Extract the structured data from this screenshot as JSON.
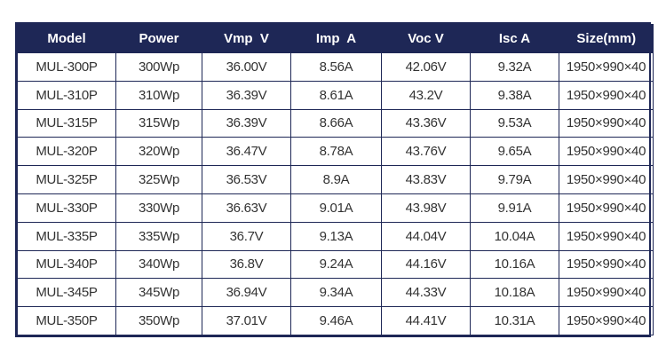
{
  "table": {
    "columns": [
      "Model",
      "Power",
      "Vmp  V",
      "Imp  A",
      "Voc V",
      "Isc A",
      "Size(mm)"
    ],
    "rows": [
      [
        "MUL-300P",
        "300Wp",
        "36.00V",
        "8.56A",
        "42.06V",
        "9.32A",
        "1950×990×40"
      ],
      [
        "MUL-310P",
        "310Wp",
        "36.39V",
        "8.61A",
        "43.2V",
        "9.38A",
        "1950×990×40"
      ],
      [
        "MUL-315P",
        "315Wp",
        "36.39V",
        "8.66A",
        "43.36V",
        "9.53A",
        "1950×990×40"
      ],
      [
        "MUL-320P",
        "320Wp",
        "36.47V",
        "8.78A",
        "43.76V",
        "9.65A",
        "1950×990×40"
      ],
      [
        "MUL-325P",
        "325Wp",
        "36.53V",
        "8.9A",
        "43.83V",
        "9.79A",
        "1950×990×40"
      ],
      [
        "MUL-330P",
        "330Wp",
        "36.63V",
        "9.01A",
        "43.98V",
        "9.91A",
        "1950×990×40"
      ],
      [
        "MUL-335P",
        "335Wp",
        "36.7V",
        "9.13A",
        "44.04V",
        "10.04A",
        "1950×990×40"
      ],
      [
        "MUL-340P",
        "340Wp",
        "36.8V",
        "9.24A",
        "44.16V",
        "10.16A",
        "1950×990×40"
      ],
      [
        "MUL-345P",
        "345Wp",
        "36.94V",
        "9.34A",
        "44.33V",
        "10.18A",
        "1950×990×40"
      ],
      [
        "MUL-350P",
        "350Wp",
        "37.01V",
        "9.46A",
        "44.41V",
        "10.31A",
        "1950×990×40"
      ]
    ]
  }
}
